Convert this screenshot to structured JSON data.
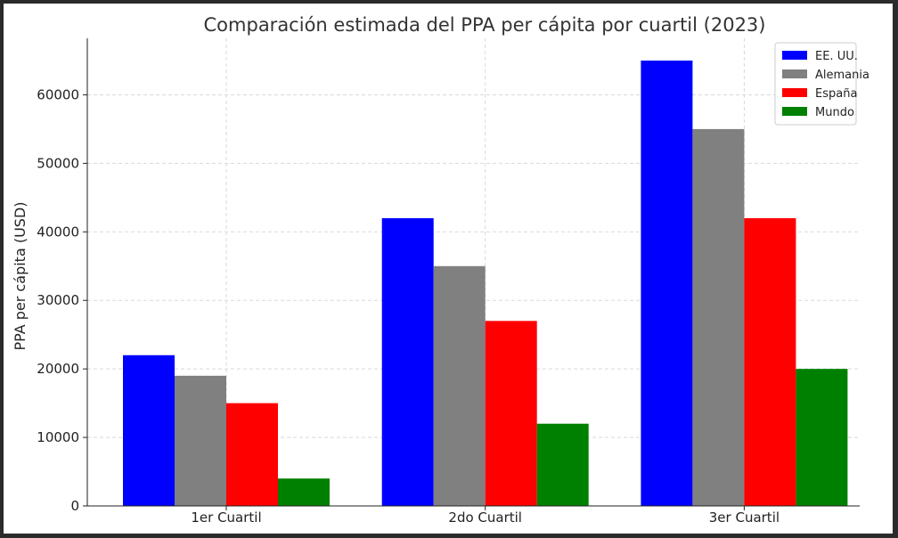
{
  "chart_data": {
    "type": "bar",
    "title": "Comparación estimada del PPA per cápita por cuartil (2023)",
    "xlabel": "",
    "ylabel": "PPA per cápita (USD)",
    "categories": [
      "1er Cuartil",
      "2do Cuartil",
      "3er Cuartil"
    ],
    "series": [
      {
        "name": "EE. UU.",
        "color": "#0000ff",
        "values": [
          22000,
          42000,
          65000
        ]
      },
      {
        "name": "Alemania",
        "color": "#808080",
        "values": [
          19000,
          35000,
          55000
        ]
      },
      {
        "name": "España",
        "color": "#ff0000",
        "values": [
          15000,
          27000,
          42000
        ]
      },
      {
        "name": "Mundo",
        "color": "#008000",
        "values": [
          4000,
          12000,
          20000
        ]
      }
    ],
    "yticks": [
      0,
      10000,
      20000,
      30000,
      40000,
      50000,
      60000
    ],
    "ylim": [
      0,
      68250
    ],
    "grid": true,
    "legend_position": "top-right"
  }
}
